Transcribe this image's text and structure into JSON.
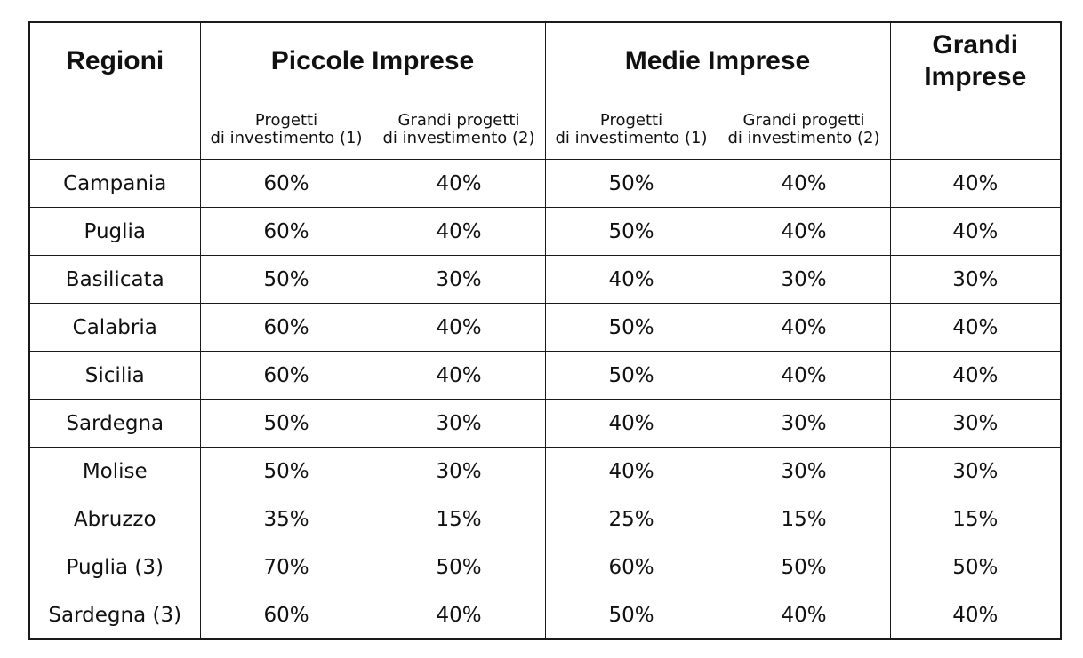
{
  "table": {
    "headers": {
      "regioni": "Regioni",
      "piccole": "Piccole Imprese",
      "medie": "Medie Imprese",
      "grandi": "Grandi Imprese"
    },
    "subheaders": {
      "piccole_progetti_line1": "Progetti",
      "piccole_progetti_line2": "di investimento (1)",
      "piccole_grandi_line1": "Grandi progetti",
      "piccole_grandi_line2": "di investimento (2)",
      "medie_progetti_line1": "Progetti",
      "medie_progetti_line2": "di investimento (1)",
      "medie_grandi_line1": "Grandi progetti",
      "medie_grandi_line2": "di investimento (2)"
    },
    "rows": [
      {
        "region": "Campania",
        "pi_prog": "60%",
        "pi_grandi": "40%",
        "mi_prog": "50%",
        "mi_grandi": "40%",
        "gi": "40%"
      },
      {
        "region": "Puglia",
        "pi_prog": "60%",
        "pi_grandi": "40%",
        "mi_prog": "50%",
        "mi_grandi": "40%",
        "gi": "40%"
      },
      {
        "region": "Basilicata",
        "pi_prog": "50%",
        "pi_grandi": "30%",
        "mi_prog": "40%",
        "mi_grandi": "30%",
        "gi": "30%"
      },
      {
        "region": "Calabria",
        "pi_prog": "60%",
        "pi_grandi": "40%",
        "mi_prog": "50%",
        "mi_grandi": "40%",
        "gi": "40%"
      },
      {
        "region": "Sicilia",
        "pi_prog": "60%",
        "pi_grandi": "40%",
        "mi_prog": "50%",
        "mi_grandi": "40%",
        "gi": "40%"
      },
      {
        "region": "Sardegna",
        "pi_prog": "50%",
        "pi_grandi": "30%",
        "mi_prog": "40%",
        "mi_grandi": "30%",
        "gi": "30%"
      },
      {
        "region": "Molise",
        "pi_prog": "50%",
        "pi_grandi": "30%",
        "mi_prog": "40%",
        "mi_grandi": "30%",
        "gi": "30%"
      },
      {
        "region": "Abruzzo",
        "pi_prog": "35%",
        "pi_grandi": "15%",
        "mi_prog": "25%",
        "mi_grandi": "15%",
        "gi": "15%"
      },
      {
        "region": "Puglia (3)",
        "pi_prog": "70%",
        "pi_grandi": "50%",
        "mi_prog": "60%",
        "mi_grandi": "50%",
        "gi": "50%"
      },
      {
        "region": "Sardegna (3)",
        "pi_prog": "60%",
        "pi_grandi": "40%",
        "mi_prog": "50%",
        "mi_grandi": "40%",
        "gi": "40%"
      }
    ]
  }
}
